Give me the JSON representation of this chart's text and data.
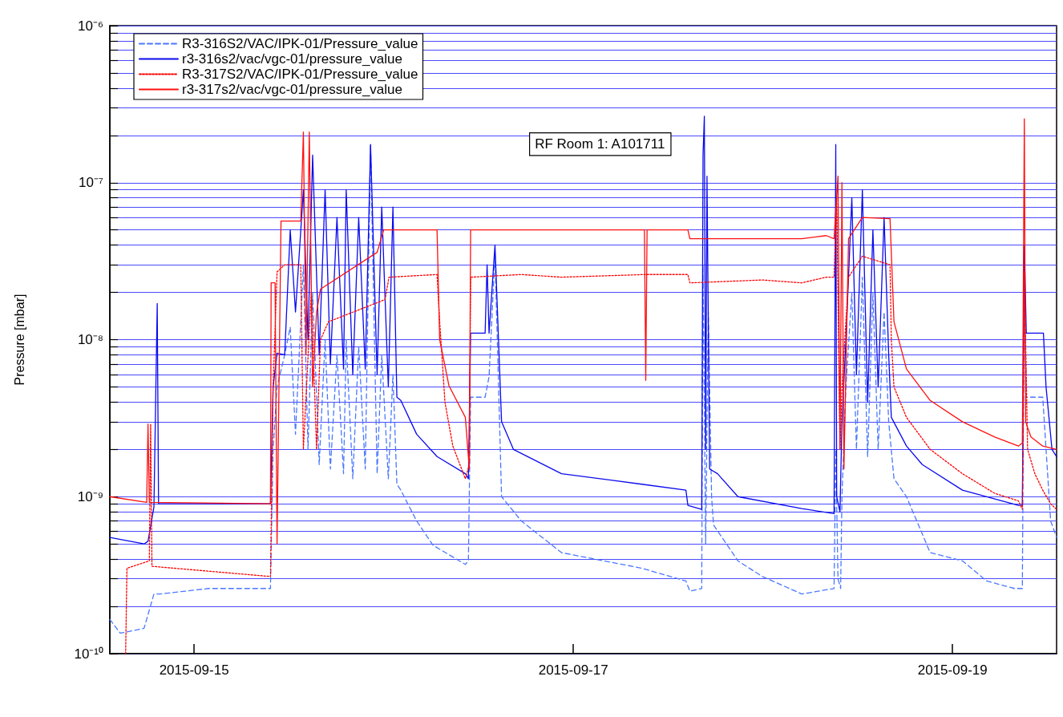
{
  "chart_data": {
    "type": "line",
    "ylabel": "Pressure [mbar]",
    "annotations": [
      "RF Room 1: A101711"
    ],
    "log": "y",
    "grid": "y",
    "legend": "top left",
    "marker": "none",
    "xlim": [
      "2015-09-14T13:20",
      "2015-09-19T13:10"
    ],
    "xticks": [
      "2015-09-15",
      "2015-09-17",
      "2015-09-19"
    ],
    "ylim": [
      1e-10,
      1e-06
    ],
    "yticks": [
      {
        "value": 1e-10,
        "label": "10⁻¹⁰"
      },
      {
        "value": 2e-10,
        "label": null
      },
      {
        "value": 3e-10,
        "label": null
      },
      {
        "value": 4e-10,
        "label": null
      },
      {
        "value": 5e-10,
        "label": null
      },
      {
        "value": 6e-10,
        "label": null
      },
      {
        "value": 7e-10,
        "label": null
      },
      {
        "value": 8e-10,
        "label": null
      },
      {
        "value": 9e-10,
        "label": null
      },
      {
        "value": 1e-09,
        "label": "10⁻⁹"
      },
      {
        "value": 2e-09,
        "label": null
      },
      {
        "value": 3e-09,
        "label": null
      },
      {
        "value": 4e-09,
        "label": null
      },
      {
        "value": 5e-09,
        "label": null
      },
      {
        "value": 6e-09,
        "label": null
      },
      {
        "value": 7e-09,
        "label": null
      },
      {
        "value": 8e-09,
        "label": null
      },
      {
        "value": 9e-09,
        "label": null
      },
      {
        "value": 1e-08,
        "label": "10⁻⁸"
      },
      {
        "value": 2e-08,
        "label": null
      },
      {
        "value": 3e-08,
        "label": null
      },
      {
        "value": 4e-08,
        "label": null
      },
      {
        "value": 5e-08,
        "label": null
      },
      {
        "value": 6e-08,
        "label": null
      },
      {
        "value": 7e-08,
        "label": null
      },
      {
        "value": 8e-08,
        "label": null
      },
      {
        "value": 9e-08,
        "label": null
      },
      {
        "value": 1e-07,
        "label": "10⁻⁷"
      },
      {
        "value": 2e-07,
        "label": null
      },
      {
        "value": 3e-07,
        "label": null
      },
      {
        "value": 4e-07,
        "label": null
      },
      {
        "value": 5e-07,
        "label": null
      },
      {
        "value": 6e-07,
        "label": null
      },
      {
        "value": 7e-07,
        "label": null
      },
      {
        "value": 8e-07,
        "label": null
      },
      {
        "value": 9e-07,
        "label": null
      },
      {
        "value": 1e-06,
        "label": "10⁻⁶"
      }
    ],
    "series": [
      {
        "name": "R3-316S2/VAC/IPK-01/Pressure_value",
        "color": "#4a78ff",
        "line_style": "dashed",
        "x": [
          "2015-09-14T13:20",
          "2015-09-14T14:40",
          "2015-09-14T17:40",
          "2015-09-14T18:55",
          "2015-09-14T19:45",
          "2015-09-15T01:50",
          "2015-09-15T09:40",
          "2015-09-15T10:00",
          "2015-09-15T10:30",
          "2015-09-15T11:28",
          "2015-09-15T12:10",
          "2015-09-15T12:50",
          "2015-09-15T13:50",
          "2015-09-15T14:25",
          "2015-09-15T15:00",
          "2015-09-15T15:50",
          "2015-09-15T16:35",
          "2015-09-15T17:15",
          "2015-09-15T18:05",
          "2015-09-15T18:55",
          "2015-09-15T19:15",
          "2015-09-15T20:05",
          "2015-09-15T20:50",
          "2015-09-15T21:40",
          "2015-09-15T22:20",
          "2015-09-15T23:10",
          "2015-09-15T23:45",
          "2015-09-16T00:35",
          "2015-09-16T01:10",
          "2015-09-16T01:40",
          "2015-09-16T02:10",
          "2015-09-16T04:10",
          "2015-09-16T06:15",
          "2015-09-16T10:20",
          "2015-09-16T10:43",
          "2015-09-16T11:00",
          "2015-09-16T12:50",
          "2015-09-16T13:20",
          "2015-09-16T14:05",
          "2015-09-16T14:55",
          "2015-09-16T17:25",
          "2015-09-16T22:30",
          "2015-09-17T08:40",
          "2015-09-17T14:15",
          "2015-09-17T14:45",
          "2015-09-17T16:15",
          "2015-09-17T16:25",
          "2015-09-17T16:45",
          "2015-09-17T17:05",
          "2015-09-17T17:30",
          "2015-09-17T17:45",
          "2015-09-17T20:50",
          "2015-09-17T23:55",
          "2015-09-18T04:55",
          "2015-09-18T09:00",
          "2015-09-18T09:13",
          "2015-09-18T09:30",
          "2015-09-18T09:50",
          "2015-09-18T10:00",
          "2015-09-18T10:30",
          "2015-09-18T11:15",
          "2015-09-18T11:50",
          "2015-09-18T12:35",
          "2015-09-18T13:15",
          "2015-09-18T13:55",
          "2015-09-18T14:35",
          "2015-09-18T15:20",
          "2015-09-18T15:55",
          "2015-09-18T16:35",
          "2015-09-18T18:10",
          "2015-09-18T21:10",
          "2015-09-19T01:15",
          "2015-09-19T04:20",
          "2015-09-19T07:50",
          "2015-09-19T08:50",
          "2015-09-19T09:05",
          "2015-09-19T09:20",
          "2015-09-19T11:25",
          "2015-09-19T11:50",
          "2015-09-19T12:25",
          "2015-09-19T13:10"
        ],
        "values": [
          1.65e-10,
          1.35e-10,
          1.45e-10,
          2.4e-10,
          2.4e-10,
          2.6e-10,
          2.6e-10,
          2e-09,
          5e-09,
          8e-09,
          1.2e-08,
          2.5e-09,
          3e-08,
          2e-09,
          2e-08,
          1.6e-09,
          1e-08,
          1.5e-09,
          8e-09,
          1.4e-09,
          1e-08,
          1.3e-09,
          9e-09,
          1.5e-09,
          1.75e-07,
          1.4e-09,
          8e-09,
          1.3e-09,
          6e-09,
          1.2e-09,
          1.1e-09,
          7e-10,
          4.9e-10,
          3.7e-10,
          3.9e-10,
          4.3e-09,
          4.3e-09,
          5.8e-09,
          3.5e-08,
          1e-09,
          7e-10,
          4.4e-10,
          3.5e-10,
          2.9e-10,
          2.5e-10,
          2.6e-10,
          3e-08,
          5e-10,
          1.5e-08,
          1e-09,
          6.6e-10,
          3.9e-10,
          3.1e-10,
          2.4e-10,
          2.6e-10,
          2e-09,
          3e-10,
          2.6e-10,
          1e-09,
          5e-09,
          2e-08,
          2e-09,
          2.5e-08,
          1.8e-09,
          2e-08,
          2e-09,
          1.5e-08,
          3e-09,
          1.3e-09,
          1e-09,
          4.4e-10,
          3.9e-10,
          2.9e-10,
          2.6e-10,
          2.6e-10,
          3e-08,
          4.3e-09,
          4.3e-09,
          2e-09,
          7e-10,
          5.5e-10
        ]
      },
      {
        "name": "r3-316s2/vac/vgc-01/pressure_value",
        "color": "#0a0aee",
        "line_style": "solid",
        "x": [
          "2015-09-14T13:20",
          "2015-09-14T17:40",
          "2015-09-14T18:10",
          "2015-09-14T18:55",
          "2015-09-14T19:20",
          "2015-09-14T19:30",
          "2015-09-15T09:40",
          "2015-09-15T10:00",
          "2015-09-15T10:30",
          "2015-09-15T11:28",
          "2015-09-15T12:10",
          "2015-09-15T12:50",
          "2015-09-15T13:50",
          "2015-09-15T14:25",
          "2015-09-15T15:00",
          "2015-09-15T15:50",
          "2015-09-15T16:35",
          "2015-09-15T17:15",
          "2015-09-15T18:05",
          "2015-09-15T18:55",
          "2015-09-15T19:15",
          "2015-09-15T20:05",
          "2015-09-15T20:50",
          "2015-09-15T21:40",
          "2015-09-15T22:20",
          "2015-09-15T23:10",
          "2015-09-15T23:45",
          "2015-09-16T00:35",
          "2015-09-16T01:10",
          "2015-09-16T01:40",
          "2015-09-16T02:10",
          "2015-09-16T04:10",
          "2015-09-16T06:45",
          "2015-09-16T10:20",
          "2015-09-16T10:43",
          "2015-09-16T11:00",
          "2015-09-16T12:50",
          "2015-09-16T13:05",
          "2015-09-16T13:20",
          "2015-09-16T14:05",
          "2015-09-16T14:55",
          "2015-09-16T16:25",
          "2015-09-16T22:30",
          "2015-09-17T08:40",
          "2015-09-17T14:15",
          "2015-09-17T14:30",
          "2015-09-17T16:15",
          "2015-09-17T16:25",
          "2015-09-17T16:35",
          "2015-09-17T16:45",
          "2015-09-17T16:55",
          "2015-09-17T17:15",
          "2015-09-17T18:15",
          "2015-09-17T20:50",
          "2015-09-18T04:55",
          "2015-09-18T09:00",
          "2015-09-18T09:13",
          "2015-09-18T09:20",
          "2015-09-18T09:45",
          "2015-09-18T10:00",
          "2015-09-18T10:30",
          "2015-09-18T11:15",
          "2015-09-18T11:50",
          "2015-09-18T12:35",
          "2015-09-18T13:15",
          "2015-09-18T13:55",
          "2015-09-18T14:35",
          "2015-09-18T15:20",
          "2015-09-18T15:55",
          "2015-09-18T16:15",
          "2015-09-18T18:10",
          "2015-09-18T20:10",
          "2015-09-19T01:15",
          "2015-09-19T08:20",
          "2015-09-19T08:50",
          "2015-09-19T09:05",
          "2015-09-19T09:20",
          "2015-09-19T11:30",
          "2015-09-19T11:50",
          "2015-09-19T12:35",
          "2015-09-19T13:10"
        ],
        "values": [
          5.5e-10,
          5e-10,
          5.2e-10,
          8.6e-10,
          1.7e-08,
          9e-10,
          9e-10,
          5e-09,
          8.2e-09,
          8e-09,
          5e-08,
          1.5e-08,
          9e-08,
          1e-08,
          1.5e-07,
          8e-09,
          9e-08,
          7e-09,
          6e-08,
          6.5e-09,
          9e-08,
          6e-09,
          6e-08,
          6.5e-09,
          1.75e-07,
          6e-09,
          7e-08,
          5e-09,
          7e-08,
          4.3e-09,
          4.1e-09,
          2.5e-09,
          1.8e-09,
          1.4e-09,
          1.3e-09,
          1.1e-08,
          1.1e-08,
          3e-08,
          1.1e-08,
          4e-08,
          3e-09,
          2e-09,
          1.4e-09,
          1.2e-09,
          1.1e-09,
          8.8e-10,
          8.3e-10,
          1.5e-07,
          2.65e-07,
          2e-09,
          1.1e-07,
          1.5e-09,
          1.4e-09,
          1e-09,
          8.4e-10,
          7.8e-10,
          1.75e-07,
          1e-09,
          8e-10,
          3e-09,
          1e-08,
          8e-08,
          6e-09,
          9e-08,
          4e-09,
          5e-08,
          5e-09,
          6e-08,
          8e-09,
          3.2e-09,
          2.1e-09,
          1.6e-09,
          1.1e-09,
          8.8e-10,
          8.8e-10,
          4e-08,
          1.1e-08,
          1.1e-08,
          5e-09,
          2e-09,
          1.8e-09
        ]
      },
      {
        "name": "R3-317S2/VAC/IPK-01/Pressure_value",
        "color": "#ff0000",
        "line_style": "dotted",
        "x": [
          "2015-09-14T15:20",
          "2015-09-14T15:30",
          "2015-09-14T18:20",
          "2015-09-14T18:30",
          "2015-09-14T18:40",
          "2015-09-15T09:40",
          "2015-09-15T10:00",
          "2015-09-15T10:30",
          "2015-09-15T11:28",
          "2015-09-15T13:30",
          "2015-09-15T13:50",
          "2015-09-15T14:50",
          "2015-09-15T15:30",
          "2015-09-15T16:00",
          "2015-09-15T17:00",
          "2015-09-16T00:10",
          "2015-09-16T00:40",
          "2015-09-16T06:45",
          "2015-09-16T07:05",
          "2015-09-16T07:45",
          "2015-09-16T08:45",
          "2015-09-16T10:20",
          "2015-09-16T10:50",
          "2015-09-16T11:00",
          "2015-09-16T17:25",
          "2015-09-16T22:30",
          "2015-09-17T09:10",
          "2015-09-17T14:30",
          "2015-09-17T14:45",
          "2015-09-17T23:55",
          "2015-09-18T04:55",
          "2015-09-18T08:00",
          "2015-09-18T09:00",
          "2015-09-18T09:20",
          "2015-09-18T09:45",
          "2015-09-18T10:00",
          "2015-09-18T10:50",
          "2015-09-18T12:35",
          "2015-09-18T16:05",
          "2015-09-18T16:15",
          "2015-09-18T16:35",
          "2015-09-18T18:10",
          "2015-09-18T21:10",
          "2015-09-19T01:15",
          "2015-09-19T05:20",
          "2015-09-19T08:20",
          "2015-09-19T08:50",
          "2015-09-19T09:05",
          "2015-09-19T09:30",
          "2015-09-19T10:25",
          "2015-09-19T11:25",
          "2015-09-19T12:25",
          "2015-09-19T13:10"
        ],
        "values": [
          1e-10,
          3.5e-10,
          3.9e-10,
          2.9e-09,
          3.6e-10,
          3.1e-10,
          5e-09,
          2.7e-08,
          3e-08,
          3e-08,
          2e-09,
          2e-08,
          2e-09,
          1e-08,
          1.3e-08,
          1.8e-08,
          2.5e-08,
          2.6e-08,
          1.3e-08,
          4e-09,
          2.1e-09,
          1.3e-09,
          1.6e-09,
          2.5e-08,
          2.6e-08,
          2.5e-08,
          2.6e-08,
          2.6e-08,
          2.3e-08,
          2.4e-08,
          2.3e-08,
          2.5e-08,
          2.5e-08,
          8e-08,
          2e-09,
          5e-09,
          2.5e-08,
          3.4e-08,
          3e-08,
          1e-08,
          5e-09,
          3.2e-09,
          2e-09,
          1.4e-09,
          1.05e-09,
          9.4e-10,
          8.3e-10,
          2.7e-08,
          2e-09,
          1.4e-09,
          1.1e-09,
          9e-10,
          8.3e-10
        ]
      },
      {
        "name": "r3-317s2/vac/vgc-01/pressure_value",
        "color": "#ff1010",
        "line_style": "solid",
        "x": [
          "2015-09-14T13:20",
          "2015-09-14T18:00",
          "2015-09-14T18:10",
          "2015-09-14T18:20",
          "2015-09-15T09:40",
          "2015-09-15T09:45",
          "2015-09-15T10:15",
          "2015-09-15T10:30",
          "2015-09-15T11:00",
          "2015-09-15T13:30",
          "2015-09-15T13:50",
          "2015-09-15T14:10",
          "2015-09-15T14:35",
          "2015-09-15T15:00",
          "2015-09-15T15:30",
          "2015-09-15T16:00",
          "2015-09-15T23:10",
          "2015-09-16T00:00",
          "2015-09-16T06:45",
          "2015-09-16T07:05",
          "2015-09-16T08:15",
          "2015-09-16T10:20",
          "2015-09-16T10:50",
          "2015-09-16T11:00",
          "2015-09-17T09:00",
          "2015-09-17T09:10",
          "2015-09-17T09:20",
          "2015-09-17T14:30",
          "2015-09-17T14:45",
          "2015-09-18T04:55",
          "2015-09-18T08:00",
          "2015-09-18T09:00",
          "2015-09-18T09:30",
          "2015-09-18T09:45",
          "2015-09-18T10:00",
          "2015-09-18T10:15",
          "2015-09-18T10:50",
          "2015-09-18T12:35",
          "2015-09-18T16:05",
          "2015-09-18T16:35",
          "2015-09-18T18:10",
          "2015-09-18T21:10",
          "2015-09-19T01:15",
          "2015-09-19T05:20",
          "2015-09-19T08:20",
          "2015-09-19T08:50",
          "2015-09-19T09:05",
          "2015-09-19T09:15",
          "2015-09-19T09:55",
          "2015-09-19T11:25",
          "2015-09-19T13:10"
        ],
        "values": [
          1e-09,
          9.2e-10,
          2.9e-09,
          9.2e-10,
          9e-10,
          2.3e-08,
          2.3e-08,
          5e-10,
          5.7e-08,
          5.7e-08,
          2.1e-07,
          8e-09,
          2.1e-07,
          5e-09,
          1.5e-08,
          2.1e-08,
          3.6e-08,
          5e-08,
          5e-08,
          1e-08,
          5.1e-09,
          3.2e-09,
          1.5e-09,
          5e-08,
          5e-08,
          5.5e-09,
          5e-08,
          5e-08,
          4.4e-08,
          4.4e-08,
          4.6e-08,
          4.4e-08,
          1.1e-07,
          2e-09,
          1e-07,
          1.5e-09,
          4.4e-08,
          6e-08,
          5.9e-08,
          1.3e-08,
          6.5e-09,
          4.1e-09,
          3e-09,
          2.4e-09,
          2.1e-09,
          2.2e-09,
          2.55e-07,
          3e-09,
          2.4e-09,
          2.1e-09,
          2e-09
        ]
      }
    ]
  }
}
